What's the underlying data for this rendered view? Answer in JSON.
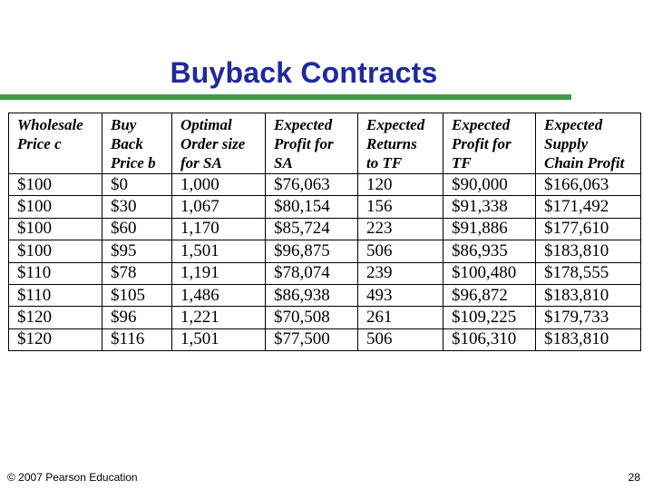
{
  "slide": {
    "title": "Buyback Contracts",
    "footer_left": "© 2007 Pearson Education",
    "page_number": "28"
  },
  "table": {
    "headers": [
      [
        "Wholesale",
        "Price c"
      ],
      [
        "Buy",
        "Back",
        "Price b"
      ],
      [
        "Optimal",
        "Order size",
        "for SA"
      ],
      [
        "Expected",
        "Profit for",
        "SA"
      ],
      [
        "Expected",
        "Returns",
        "to TF"
      ],
      [
        "Expected",
        "Profit for",
        "TF"
      ],
      [
        "Expected",
        "Supply",
        "Chain Profit"
      ]
    ],
    "rows": [
      [
        "$100",
        "$0",
        "1,000",
        "$76,063",
        "120",
        "$90,000",
        "$166,063"
      ],
      [
        "$100",
        "$30",
        "1,067",
        "$80,154",
        "156",
        "$91,338",
        "$171,492"
      ],
      [
        "$100",
        "$60",
        "1,170",
        "$85,724",
        "223",
        "$91,886",
        "$177,610"
      ],
      [
        "$100",
        "$95",
        "1,501",
        "$96,875",
        "506",
        "$86,935",
        "$183,810"
      ],
      [
        "$110",
        "$78",
        "1,191",
        "$78,074",
        "239",
        "$100,480",
        "$178,555"
      ],
      [
        "$110",
        "$105",
        "1,486",
        "$86,938",
        "493",
        "$96,872",
        "$183,810"
      ],
      [
        "$120",
        "$96",
        "1,221",
        "$70,508",
        "261",
        "$109,225",
        "$179,733"
      ],
      [
        "$120",
        "$116",
        "1,501",
        "$77,500",
        "506",
        "$106,310",
        "$183,810"
      ]
    ]
  }
}
